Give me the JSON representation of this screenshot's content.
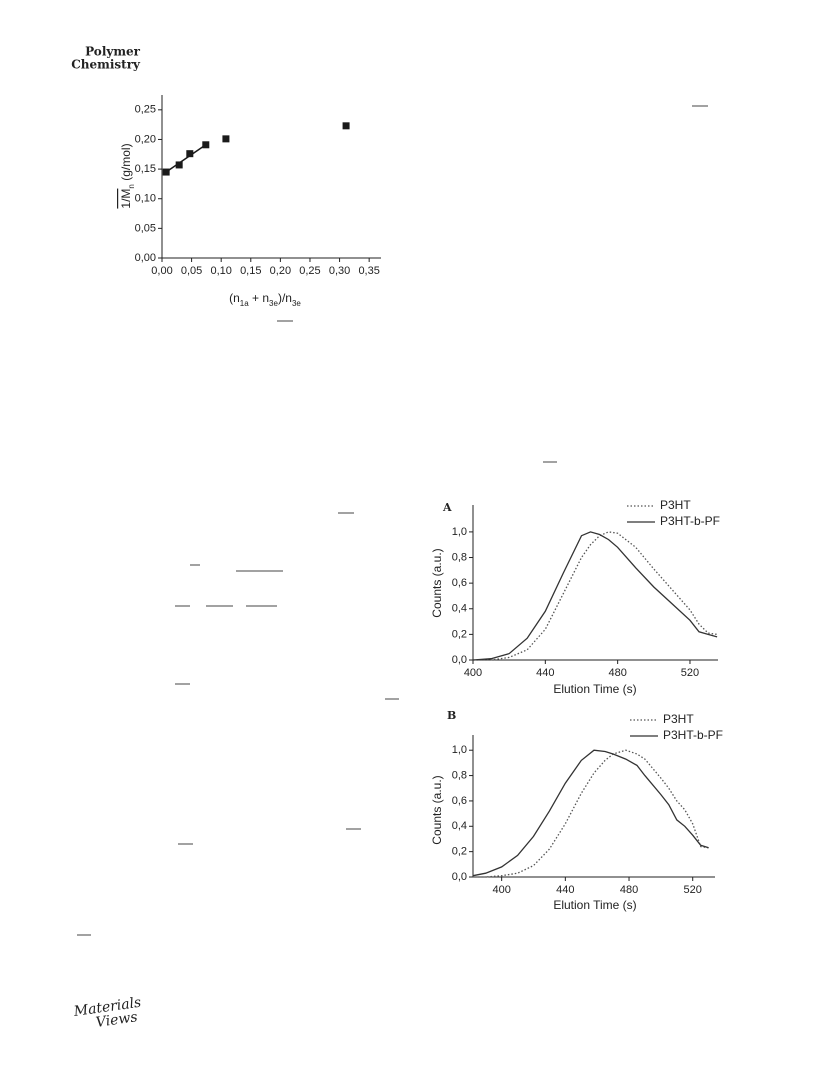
{
  "header": {
    "journal": [
      "Polymer",
      "Chemistry"
    ]
  },
  "footer": {
    "logo": [
      "Materials",
      "Views"
    ]
  },
  "chart_data": [
    {
      "type": "scatter",
      "y_label": [
        {
          "text": "1/M"
        },
        {
          "sub": "n"
        },
        {
          "text": " (g/mol)"
        }
      ],
      "x_label": [
        {
          "text": "(n"
        },
        {
          "sub": "1a"
        },
        {
          "text": " + n"
        },
        {
          "sub": "3e"
        },
        {
          "text": ")/n"
        },
        {
          "sub": "3e"
        }
      ],
      "x": [
        0.007,
        0.029,
        0.047,
        0.074,
        0.108,
        0.311
      ],
      "values": [
        0.145,
        0.157,
        0.176,
        0.191,
        0.201,
        0.223
      ],
      "color": "#1a1a1a",
      "fit_line": {
        "x": [
          0.007,
          0.074
        ],
        "y": [
          0.145,
          0.191
        ]
      },
      "xlim": [
        0,
        0.37
      ],
      "ylim": [
        0,
        0.275
      ],
      "xticks": [
        {
          "value": 0,
          "label": "0,00"
        },
        {
          "value": 0.05,
          "label": "0,05"
        },
        {
          "value": 0.1,
          "label": "0,10"
        },
        {
          "value": 0.15,
          "label": "0,15"
        },
        {
          "value": 0.2,
          "label": "0,20"
        },
        {
          "value": 0.25,
          "label": "0,25"
        },
        {
          "value": 0.3,
          "label": "0,30"
        },
        {
          "value": 0.35,
          "label": "0,35"
        }
      ],
      "yticks": [
        {
          "value": 0,
          "label": "0,00"
        },
        {
          "value": 0.05,
          "label": "0,05"
        },
        {
          "value": 0.1,
          "label": "0,10"
        },
        {
          "value": 0.15,
          "label": "0,15"
        },
        {
          "value": 0.2,
          "label": "0,20"
        },
        {
          "value": 0.25,
          "label": "0,25"
        }
      ]
    },
    {
      "type": "line",
      "panel": "A",
      "y_label": [
        {
          "text": "Counts (a.u.)"
        }
      ],
      "x_label": [
        {
          "text": "Elution Time (s)"
        }
      ],
      "legend": "upper right",
      "x": [
        400,
        410,
        420,
        430,
        440,
        450,
        460,
        465,
        470,
        475,
        480,
        490,
        500,
        510,
        520,
        525,
        530,
        535
      ],
      "series": [
        {
          "name": "P3HT",
          "color": "#555555",
          "style": "dotted",
          "values": [
            0.0,
            0.0,
            0.02,
            0.08,
            0.24,
            0.52,
            0.8,
            0.9,
            0.97,
            1.0,
            0.99,
            0.88,
            0.71,
            0.55,
            0.39,
            0.28,
            0.21,
            0.2
          ]
        },
        {
          "name": "P3HT-b-PF",
          "color": "#333333",
          "style": "solid",
          "values": [
            0.0,
            0.01,
            0.05,
            0.17,
            0.38,
            0.68,
            0.97,
            1.0,
            0.98,
            0.94,
            0.88,
            0.72,
            0.57,
            0.44,
            0.31,
            0.22,
            0.2,
            0.18
          ]
        }
      ],
      "xlim": [
        400,
        535.5
      ],
      "ylim": [
        0,
        1.21
      ],
      "xticks": [
        400,
        440,
        480,
        520
      ],
      "yticks": [
        {
          "value": 0,
          "label": "0,0"
        },
        {
          "value": 0.2,
          "label": "0,2"
        },
        {
          "value": 0.4,
          "label": "0,4"
        },
        {
          "value": 0.6,
          "label": "0,6"
        },
        {
          "value": 0.8,
          "label": "0,8"
        },
        {
          "value": 1,
          "label": "1,0"
        }
      ]
    },
    {
      "type": "line",
      "panel": "B",
      "y_label": [
        {
          "text": "Counts (a.u.)"
        }
      ],
      "x_label": [
        {
          "text": "Elution Time (s)"
        }
      ],
      "legend": "upper right",
      "x": [
        382,
        390,
        400,
        410,
        420,
        430,
        440,
        450,
        458,
        465,
        470,
        478,
        485,
        490,
        500,
        505,
        510,
        515,
        520,
        525,
        530
      ],
      "series": [
        {
          "name": "P3HT",
          "color": "#555555",
          "style": "dotted",
          "values": [
            0.0,
            0.0,
            0.01,
            0.03,
            0.09,
            0.22,
            0.42,
            0.66,
            0.82,
            0.92,
            0.97,
            1.0,
            0.97,
            0.93,
            0.78,
            0.7,
            0.6,
            0.53,
            0.42,
            0.24,
            0.23
          ]
        },
        {
          "name": "P3HT-b-PF",
          "color": "#333333",
          "style": "solid",
          "values": [
            0.01,
            0.03,
            0.08,
            0.17,
            0.32,
            0.52,
            0.74,
            0.92,
            1.0,
            0.99,
            0.97,
            0.93,
            0.88,
            0.8,
            0.65,
            0.57,
            0.45,
            0.4,
            0.33,
            0.25,
            0.23
          ]
        }
      ],
      "xlim": [
        382,
        534
      ],
      "ylim": [
        0,
        1.12
      ],
      "xticks": [
        400,
        440,
        480,
        520
      ],
      "yticks": [
        {
          "value": 0,
          "label": "0,0"
        },
        {
          "value": 0.2,
          "label": "0,2"
        },
        {
          "value": 0.4,
          "label": "0,4"
        },
        {
          "value": 0.6,
          "label": "0,6"
        },
        {
          "value": 0.8,
          "label": "0,8"
        },
        {
          "value": 1,
          "label": "1,0"
        }
      ]
    }
  ]
}
